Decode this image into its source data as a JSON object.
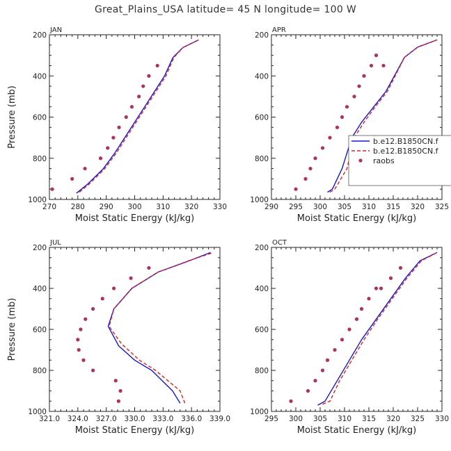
{
  "figure": {
    "title": "Great_Plains_USA  latitude= 45 N longitude= 100 W"
  },
  "colors": {
    "model1": "#1515d8",
    "model2": "#e02020",
    "raobs": "#b03060",
    "axis": "#222222"
  },
  "legend": {
    "entries": [
      "b.e12.B1850CN.f",
      "b.e12.B1850CN.f",
      "raobs"
    ],
    "placement": "right of APR panel"
  },
  "chart_data": [
    {
      "type": "line",
      "panel_label": "JAN",
      "xlabel": "Moist Static Energy (kJ/kg)",
      "ylabel": "Pressure (mb)",
      "xlim": [
        270,
        330
      ],
      "ylim": [
        1000,
        200
      ],
      "xticks": [
        270,
        280,
        290,
        300,
        310,
        320,
        330
      ],
      "xtick_labels": [
        "270",
        "280",
        "290",
        "300",
        "310",
        "320",
        "330"
      ],
      "yticks": [
        200,
        400,
        600,
        800,
        1000
      ],
      "grid": false,
      "series": [
        {
          "style": "solid-blue",
          "x": [
            279.5,
            283.5,
            289,
            293,
            296.5,
            300,
            303.5,
            307,
            310.5,
            313.5,
            317,
            322.5
          ],
          "y": [
            970,
            925,
            850,
            775,
            700,
            625,
            550,
            475,
            400,
            310,
            262,
            225
          ]
        },
        {
          "style": "dashed-red",
          "x": [
            280.5,
            284,
            289.5,
            293.5,
            297,
            300.5,
            304,
            307.5,
            311,
            313.8,
            317,
            322.5
          ],
          "y": [
            965,
            925,
            850,
            775,
            700,
            625,
            550,
            475,
            400,
            310,
            262,
            225
          ]
        },
        {
          "style": "dots-raobs",
          "x": [
            271,
            278,
            282.5,
            288,
            290.5,
            292.5,
            294.5,
            297,
            299,
            301.5,
            303,
            305,
            308
          ],
          "y": [
            950,
            900,
            850,
            800,
            750,
            700,
            650,
            600,
            550,
            500,
            450,
            400,
            350
          ]
        }
      ]
    },
    {
      "type": "line",
      "panel_label": "APR",
      "xlabel": "Moist Static Energy (kJ/kg)",
      "ylabel": "",
      "xlim": [
        290,
        325
      ],
      "ylim": [
        1000,
        200
      ],
      "xticks": [
        290,
        295,
        300,
        305,
        310,
        315,
        320,
        325
      ],
      "xtick_labels": [
        "290",
        "295",
        "300",
        "305",
        "310",
        "315",
        "320",
        "325"
      ],
      "yticks": [
        200,
        400,
        600,
        800,
        1000
      ],
      "grid": false,
      "series": [
        {
          "style": "solid-blue",
          "x": [
            301.5,
            302.5,
            304.5,
            306.5,
            308.5,
            311,
            313.5,
            317.3,
            320,
            324
          ],
          "y": [
            965,
            950,
            850,
            700,
            625,
            550,
            475,
            310,
            260,
            225
          ]
        },
        {
          "style": "dashed-red",
          "x": [
            302,
            303,
            305.5,
            307,
            309,
            311.3,
            313.8,
            317.3,
            320,
            324
          ],
          "y": [
            965,
            950,
            850,
            700,
            625,
            550,
            475,
            310,
            260,
            225
          ]
        },
        {
          "style": "dots-raobs",
          "x": [
            295,
            297,
            298,
            299,
            300.5,
            302,
            303.5,
            304.5,
            305.5,
            307,
            308,
            309,
            310.5,
            311.5,
            313
          ],
          "y": [
            950,
            900,
            850,
            800,
            750,
            700,
            650,
            600,
            550,
            500,
            450,
            400,
            350,
            300,
            350
          ]
        }
      ]
    },
    {
      "type": "line",
      "panel_label": "JUL",
      "xlabel": "Moist Static Energy (kJ/kg)",
      "ylabel": "Pressure (mb)",
      "xlim": [
        321,
        339
      ],
      "ylim": [
        1000,
        200
      ],
      "xticks": [
        321,
        324,
        327,
        330,
        333,
        336,
        339
      ],
      "xtick_labels": [
        "321.0",
        "324.0",
        "327.0",
        "330.0",
        "333.0",
        "336.0",
        "339.0"
      ],
      "yticks": [
        200,
        400,
        600,
        800,
        1000
      ],
      "grid": false,
      "series": [
        {
          "style": "solid-blue",
          "x": [
            334.8,
            334,
            331.8,
            330,
            328.3,
            327.2,
            327.8,
            329.7,
            332.5,
            335.5,
            338
          ],
          "y": [
            960,
            900,
            800,
            750,
            680,
            585,
            500,
            400,
            320,
            270,
            225
          ]
        },
        {
          "style": "dashed-red",
          "x": [
            335.3,
            334.8,
            332.2,
            330.5,
            328.6,
            327.3,
            327.8,
            329.7,
            332.5,
            335.7,
            338.3
          ],
          "y": [
            960,
            900,
            800,
            750,
            670,
            585,
            500,
            400,
            320,
            265,
            225
          ]
        },
        {
          "style": "dots-raobs",
          "x": [
            328.3,
            328.5,
            328,
            325.6,
            324.6,
            324.1,
            324,
            324.3,
            324.8,
            325.6,
            326.6,
            327.8,
            329.6,
            331.5
          ],
          "y": [
            950,
            900,
            850,
            800,
            750,
            700,
            650,
            600,
            550,
            500,
            450,
            400,
            350,
            300
          ]
        }
      ]
    },
    {
      "type": "line",
      "panel_label": "OCT",
      "xlabel": "Moist Static Energy (kJ/kg)",
      "ylabel": "",
      "xlim": [
        295,
        330
      ],
      "ylim": [
        1000,
        200
      ],
      "xticks": [
        295,
        300,
        305,
        310,
        315,
        320,
        325,
        330
      ],
      "xtick_labels": [
        "295",
        "300",
        "305",
        "310",
        "315",
        "320",
        "325",
        "330"
      ],
      "yticks": [
        200,
        400,
        600,
        800,
        1000
      ],
      "grid": false,
      "series": [
        {
          "style": "solid-blue",
          "x": [
            304.5,
            306,
            308.5,
            311,
            313.5,
            316.5,
            319.5,
            322.5,
            325.5,
            329
          ],
          "y": [
            970,
            950,
            850,
            750,
            650,
            550,
            450,
            350,
            265,
            225
          ]
        },
        {
          "style": "dashed-red",
          "x": [
            305.5,
            307,
            309,
            311.5,
            314,
            316.8,
            319.8,
            322.8,
            325.8,
            329
          ],
          "y": [
            965,
            950,
            850,
            750,
            650,
            550,
            450,
            350,
            265,
            225
          ]
        },
        {
          "style": "dots-raobs",
          "x": [
            299,
            302.5,
            304,
            305.5,
            306.5,
            308,
            309.5,
            311,
            312.5,
            313.5,
            315,
            316.5,
            317.5,
            319.5,
            321.5
          ],
          "y": [
            950,
            900,
            850,
            800,
            750,
            700,
            650,
            600,
            550,
            500,
            450,
            400,
            400,
            350,
            300
          ]
        }
      ]
    }
  ]
}
